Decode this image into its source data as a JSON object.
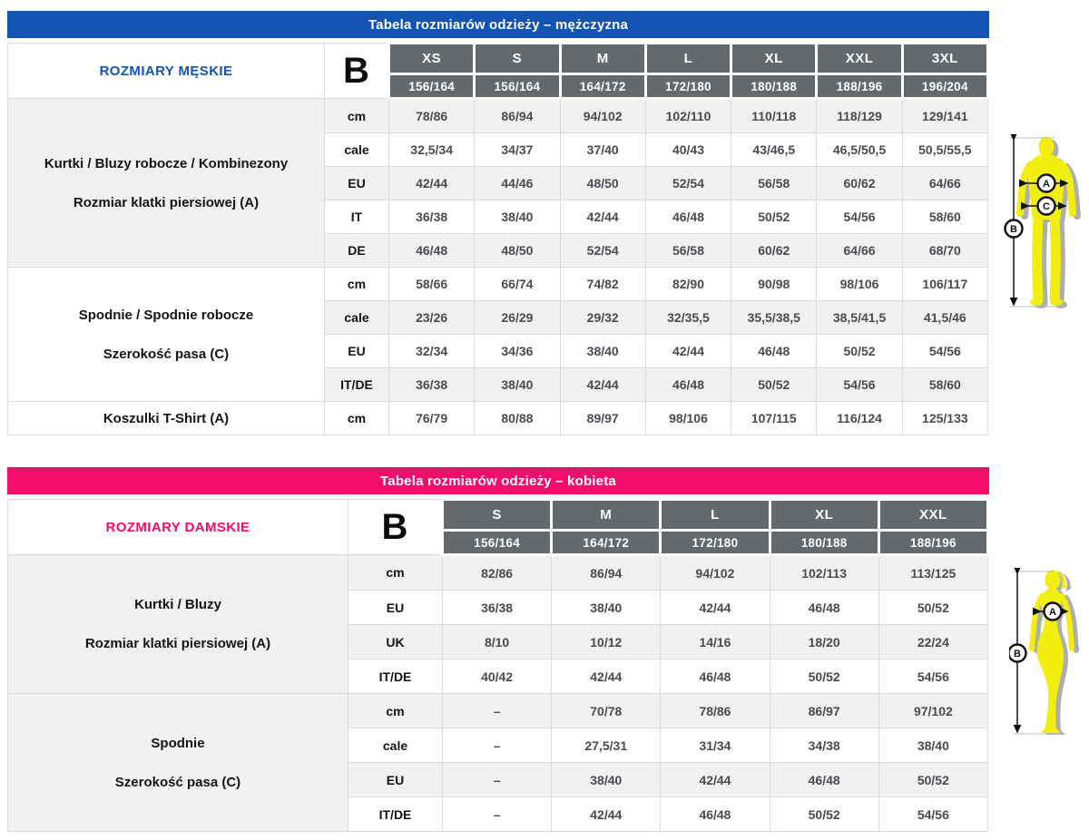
{
  "colors": {
    "header_cell": "#64696d",
    "row_shade": "#f1f1f2",
    "border": "#dcdcdc",
    "figure_yellow": "#f2ee0f",
    "figure_shadow": "#aeaeae"
  },
  "tables": [
    {
      "title": "Tabela rozmiarów odzieży – mężczyzna",
      "accent_color": "#1253b4",
      "side_label": "ROZMIARY MĘSKIE",
      "measure_letter": "B",
      "sizes": [
        "XS",
        "S",
        "M",
        "L",
        "XL",
        "XXL",
        "3XL"
      ],
      "height_ranges": [
        "156/164",
        "156/164",
        "164/172",
        "172/180",
        "180/188",
        "188/196",
        "196/204"
      ],
      "groups": [
        {
          "label_lines": [
            "Kurtki / Bluzy robocze / Kombinezony",
            "Rozmiar klatki piersiowej (A)"
          ],
          "rows": [
            {
              "unit": "cm",
              "values": [
                "78/86",
                "86/94",
                "94/102",
                "102/110",
                "110/118",
                "118/129",
                "129/141"
              ]
            },
            {
              "unit": "cale",
              "values": [
                "32,5/34",
                "34/37",
                "37/40",
                "40/43",
                "43/46,5",
                "46,5/50,5",
                "50,5/55,5"
              ]
            },
            {
              "unit": "EU",
              "values": [
                "42/44",
                "44/46",
                "48/50",
                "52/54",
                "56/58",
                "60/62",
                "64/66"
              ]
            },
            {
              "unit": "IT",
              "values": [
                "36/38",
                "38/40",
                "42/44",
                "46/48",
                "50/52",
                "54/56",
                "58/60"
              ]
            },
            {
              "unit": "DE",
              "values": [
                "46/48",
                "48/50",
                "52/54",
                "56/58",
                "60/62",
                "64/66",
                "68/70"
              ]
            }
          ]
        },
        {
          "label_lines": [
            "Spodnie / Spodnie robocze",
            "Szerokość pasa (C)"
          ],
          "rows": [
            {
              "unit": "cm",
              "values": [
                "58/66",
                "66/74",
                "74/82",
                "82/90",
                "90/98",
                "98/106",
                "106/117"
              ]
            },
            {
              "unit": "cale",
              "values": [
                "23/26",
                "26/29",
                "29/32",
                "32/35,5",
                "35,5/38,5",
                "38,5/41,5",
                "41,5/46"
              ]
            },
            {
              "unit": "EU",
              "values": [
                "32/34",
                "34/36",
                "38/40",
                "42/44",
                "46/48",
                "50/52",
                "54/56"
              ]
            },
            {
              "unit": "IT/DE",
              "values": [
                "36/38",
                "38/40",
                "42/44",
                "46/48",
                "50/52",
                "54/56",
                "58/60"
              ]
            }
          ]
        },
        {
          "label_lines": [
            "Koszulki T-Shirt (A)"
          ],
          "rows": [
            {
              "unit": "cm",
              "values": [
                "76/79",
                "80/88",
                "89/97",
                "98/106",
                "107/115",
                "116/124",
                "125/133"
              ]
            }
          ]
        }
      ],
      "figure": {
        "chest_label": "A",
        "height_label": "B",
        "waist_label": "C"
      }
    },
    {
      "title": "Tabela rozmiarów odzieży – kobieta",
      "accent_color": "#f30d6b",
      "side_label": "ROZMIARY DAMSKIE",
      "measure_letter": "B",
      "sizes": [
        "S",
        "M",
        "L",
        "XL",
        "XXL"
      ],
      "height_ranges": [
        "156/164",
        "164/172",
        "172/180",
        "180/188",
        "188/196"
      ],
      "groups": [
        {
          "label_lines": [
            "Kurtki / Bluzy",
            "Rozmiar klatki piersiowej (A)"
          ],
          "rows": [
            {
              "unit": "cm",
              "values": [
                "82/86",
                "86/94",
                "94/102",
                "102/113",
                "113/125"
              ]
            },
            {
              "unit": "EU",
              "values": [
                "36/38",
                "38/40",
                "42/44",
                "46/48",
                "50/52"
              ]
            },
            {
              "unit": "UK",
              "values": [
                "8/10",
                "10/12",
                "14/16",
                "18/20",
                "22/24"
              ]
            },
            {
              "unit": "IT/DE",
              "values": [
                "40/42",
                "42/44",
                "46/48",
                "50/52",
                "54/56"
              ]
            }
          ]
        },
        {
          "label_lines": [
            "Spodnie",
            "Szerokość pasa (C)"
          ],
          "rows": [
            {
              "unit": "cm",
              "values": [
                "–",
                "70/78",
                "78/86",
                "86/97",
                "97/102"
              ]
            },
            {
              "unit": "cale",
              "values": [
                "–",
                "27,5/31",
                "31/34",
                "34/38",
                "38/40"
              ]
            },
            {
              "unit": "EU",
              "values": [
                "–",
                "38/40",
                "42/44",
                "46/48",
                "50/52"
              ]
            },
            {
              "unit": "IT/DE",
              "values": [
                "–",
                "42/44",
                "46/48",
                "50/52",
                "54/56"
              ]
            }
          ]
        }
      ],
      "figure": {
        "chest_label": "A",
        "height_label": "B"
      }
    }
  ]
}
